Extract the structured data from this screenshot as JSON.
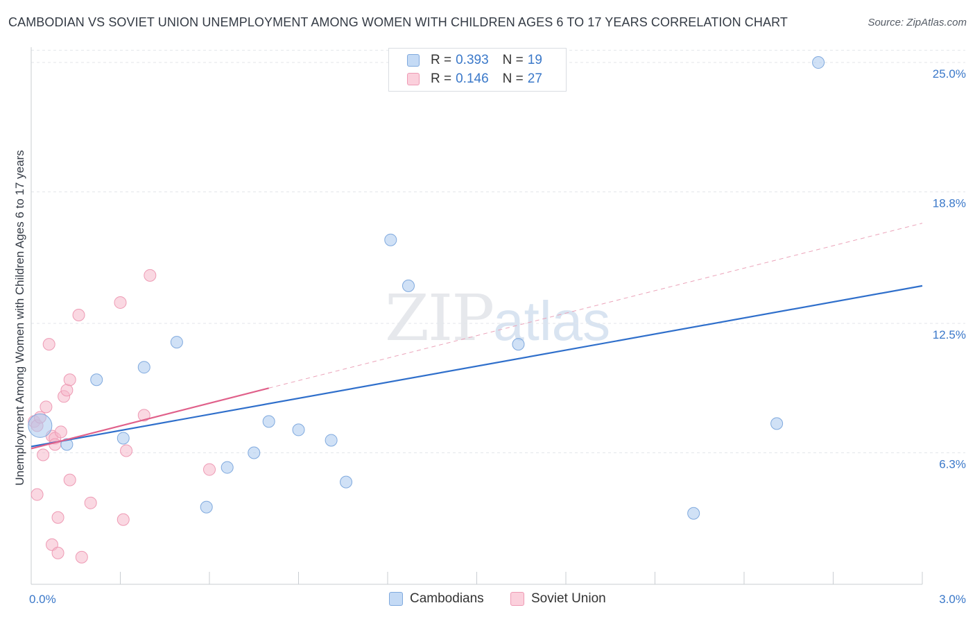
{
  "title": "CAMBODIAN VS SOVIET UNION UNEMPLOYMENT AMONG WOMEN WITH CHILDREN AGES 6 TO 17 YEARS CORRELATION CHART",
  "source": "Source: ZipAtlas.com",
  "watermark": {
    "zip": "ZIP",
    "atlas": "atlas"
  },
  "colors": {
    "cambodians": "#a9c8ef",
    "cambodians_line": "#2f6fcb",
    "soviet": "#f6b8ca",
    "soviet_line": "#e0608a",
    "axis_text": "#3a78c9"
  },
  "legend": {
    "r_label": "R =",
    "n_label": "N =",
    "cambodians": {
      "r": "0.393",
      "n": "19"
    },
    "soviet": {
      "r": "0.146",
      "n": "27"
    }
  },
  "chart_data": {
    "type": "scatter",
    "title": "CAMBODIAN VS SOVIET UNION UNEMPLOYMENT AMONG WOMEN WITH CHILDREN AGES 6 TO 17 YEARS CORRELATION CHART",
    "xlabel": "",
    "ylabel": "Unemployment Among Women with Children Ages 6 to 17 years",
    "xlim": [
      0,
      3.0
    ],
    "ylim": [
      0,
      25.6
    ],
    "x_tick_labels": [
      "0.0%",
      "3.0%"
    ],
    "y_ticks": [
      6.3,
      12.5,
      18.8,
      25.0
    ],
    "y_tick_labels": [
      "6.3%",
      "12.5%",
      "18.8%",
      "25.0%"
    ],
    "legend_position": "bottom",
    "series": [
      {
        "name": "Cambodians",
        "points": [
          {
            "x": 0.03,
            "y": 7.6,
            "big": true
          },
          {
            "x": 0.12,
            "y": 6.7
          },
          {
            "x": 0.22,
            "y": 9.8
          },
          {
            "x": 0.31,
            "y": 7.0
          },
          {
            "x": 0.38,
            "y": 10.4
          },
          {
            "x": 0.49,
            "y": 11.6
          },
          {
            "x": 0.59,
            "y": 3.7
          },
          {
            "x": 0.66,
            "y": 5.6
          },
          {
            "x": 0.75,
            "y": 6.3
          },
          {
            "x": 0.8,
            "y": 7.8
          },
          {
            "x": 0.9,
            "y": 7.4
          },
          {
            "x": 1.01,
            "y": 6.9
          },
          {
            "x": 1.06,
            "y": 4.9
          },
          {
            "x": 1.21,
            "y": 16.5
          },
          {
            "x": 1.27,
            "y": 14.3
          },
          {
            "x": 1.64,
            "y": 11.5
          },
          {
            "x": 2.23,
            "y": 3.4
          },
          {
            "x": 2.51,
            "y": 7.7
          },
          {
            "x": 2.65,
            "y": 25.0
          }
        ],
        "trend": {
          "x": [
            0.0,
            3.0
          ],
          "y": [
            6.6,
            14.3
          ]
        }
      },
      {
        "name": "Soviet Union",
        "points": [
          {
            "x": 0.01,
            "y": 7.8
          },
          {
            "x": 0.02,
            "y": 7.6
          },
          {
            "x": 0.02,
            "y": 4.3
          },
          {
            "x": 0.03,
            "y": 8.0
          },
          {
            "x": 0.04,
            "y": 6.2
          },
          {
            "x": 0.05,
            "y": 8.5
          },
          {
            "x": 0.06,
            "y": 11.5
          },
          {
            "x": 0.07,
            "y": 7.1
          },
          {
            "x": 0.07,
            "y": 1.9
          },
          {
            "x": 0.08,
            "y": 7.0
          },
          {
            "x": 0.08,
            "y": 6.7
          },
          {
            "x": 0.09,
            "y": 3.2
          },
          {
            "x": 0.09,
            "y": 1.5
          },
          {
            "x": 0.1,
            "y": 7.3
          },
          {
            "x": 0.11,
            "y": 9.0
          },
          {
            "x": 0.12,
            "y": 9.3
          },
          {
            "x": 0.13,
            "y": 5.0
          },
          {
            "x": 0.13,
            "y": 9.8
          },
          {
            "x": 0.16,
            "y": 12.9
          },
          {
            "x": 0.17,
            "y": 1.3
          },
          {
            "x": 0.2,
            "y": 3.9
          },
          {
            "x": 0.3,
            "y": 13.5
          },
          {
            "x": 0.31,
            "y": 3.1
          },
          {
            "x": 0.32,
            "y": 6.4
          },
          {
            "x": 0.38,
            "y": 8.1
          },
          {
            "x": 0.4,
            "y": 14.8
          },
          {
            "x": 0.6,
            "y": 5.5
          }
        ],
        "trend": {
          "x": [
            0.0,
            0.8
          ],
          "y": [
            6.5,
            9.4
          ]
        },
        "trend_extension": {
          "x": [
            0.8,
            3.0
          ],
          "y": [
            9.4,
            17.3
          ]
        }
      }
    ]
  }
}
